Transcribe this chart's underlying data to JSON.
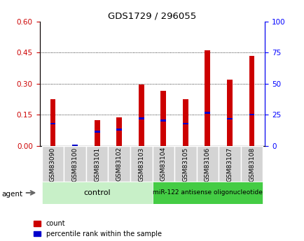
{
  "title": "GDS1729 / 296055",
  "samples": [
    "GSM83090",
    "GSM83100",
    "GSM83101",
    "GSM83102",
    "GSM83103",
    "GSM83104",
    "GSM83105",
    "GSM83106",
    "GSM83107",
    "GSM83108"
  ],
  "red_values": [
    0.225,
    0.002,
    0.125,
    0.138,
    0.297,
    0.265,
    0.225,
    0.462,
    0.32,
    0.435
  ],
  "blue_values": [
    0.108,
    0.003,
    0.068,
    0.078,
    0.133,
    0.122,
    0.108,
    0.16,
    0.13,
    0.15
  ],
  "blue_thickness": 0.008,
  "red_color": "#cc0000",
  "blue_color": "#0000cc",
  "bar_width": 0.25,
  "ylim_left": [
    0,
    0.6
  ],
  "ylim_right": [
    0,
    100
  ],
  "yticks_left": [
    0,
    0.15,
    0.3,
    0.45,
    0.6
  ],
  "yticks_right": [
    0,
    25,
    50,
    75,
    100
  ],
  "grid_lines": [
    0.15,
    0.3,
    0.45
  ],
  "control_label": "control",
  "treatment_label": "miR-122 antisense oligonucleotide",
  "agent_label": "agent",
  "legend_count": "count",
  "legend_pct": "percentile rank within the sample",
  "bg_color_xticklabels": "#d4d4d4",
  "control_bg": "#c8f0c8",
  "treatment_bg": "#44cc44"
}
